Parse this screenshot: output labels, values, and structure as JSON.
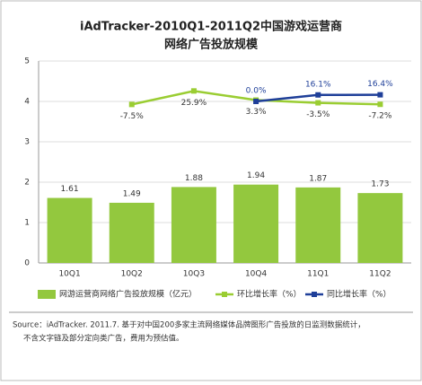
{
  "chart_data": {
    "type": "bar",
    "title": "iAdTracker-2010Q1-2011Q2中国游戏运营商",
    "subtitle": "网络广告投放规模",
    "categories": [
      "10Q1",
      "10Q2",
      "10Q3",
      "10Q4",
      "11Q1",
      "11Q2"
    ],
    "series": [
      {
        "name": "网游运营商网络广告投放规模（亿元）",
        "type": "bar",
        "color": "#93c83e",
        "values": [
          1.61,
          1.49,
          1.88,
          1.94,
          1.87,
          1.73
        ]
      },
      {
        "name": "环比增长率（%）",
        "type": "line",
        "axis": "y2",
        "color": "#9acd32",
        "values": [
          null,
          -7.5,
          25.9,
          3.3,
          -3.5,
          -7.2
        ],
        "value_labels": [
          null,
          "-7.5%",
          "25.9%",
          "3.3%",
          "-3.5%",
          "-7.2%"
        ]
      },
      {
        "name": "同比增长率（%）",
        "type": "line",
        "axis": "y2",
        "color": "#1f3f99",
        "values": [
          null,
          null,
          null,
          0.0,
          16.1,
          16.4
        ],
        "value_labels": [
          null,
          null,
          null,
          "0.0%",
          "16.1%",
          "16.4%"
        ]
      }
    ],
    "ylim": [
      0,
      5
    ],
    "yticks": [
      0,
      1,
      2,
      3,
      4,
      5
    ],
    "y2lim": [
      -400,
      100
    ],
    "grid": true,
    "source": "Source：iAdTracker. 2011.7. 基于对中国200多家主流网络媒体品牌图形广告投放的日监测数据统计，",
    "source_line2": "不含文字链及部分定向类广告，费用为预估值。"
  }
}
